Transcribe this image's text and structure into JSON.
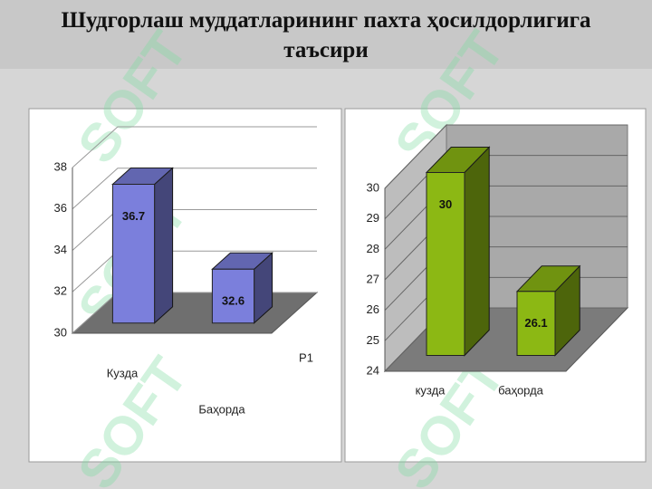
{
  "slide": {
    "title": "Шудгорлаш муддатларининг пахта ҳосилдорлигига таъсири",
    "watermark": "SOFT"
  },
  "chart_data": [
    {
      "type": "bar",
      "categories": [
        "Кузда",
        "Баҳорда"
      ],
      "series": [
        {
          "name": "P1",
          "color": "#7b7fdc",
          "values": [
            36.7,
            32.6
          ]
        }
      ],
      "ylim": [
        30,
        38
      ],
      "yticks": [
        30,
        32,
        34,
        36,
        38
      ],
      "grid": true
    },
    {
      "type": "bar",
      "categories": [
        "кузда",
        "баҳорда"
      ],
      "series": [
        {
          "color": "#8cb814",
          "values": [
            30,
            26.1
          ]
        }
      ],
      "ylim": [
        24,
        30
      ],
      "yticks": [
        24,
        25,
        26,
        27,
        28,
        29,
        30
      ],
      "grid": true
    }
  ]
}
